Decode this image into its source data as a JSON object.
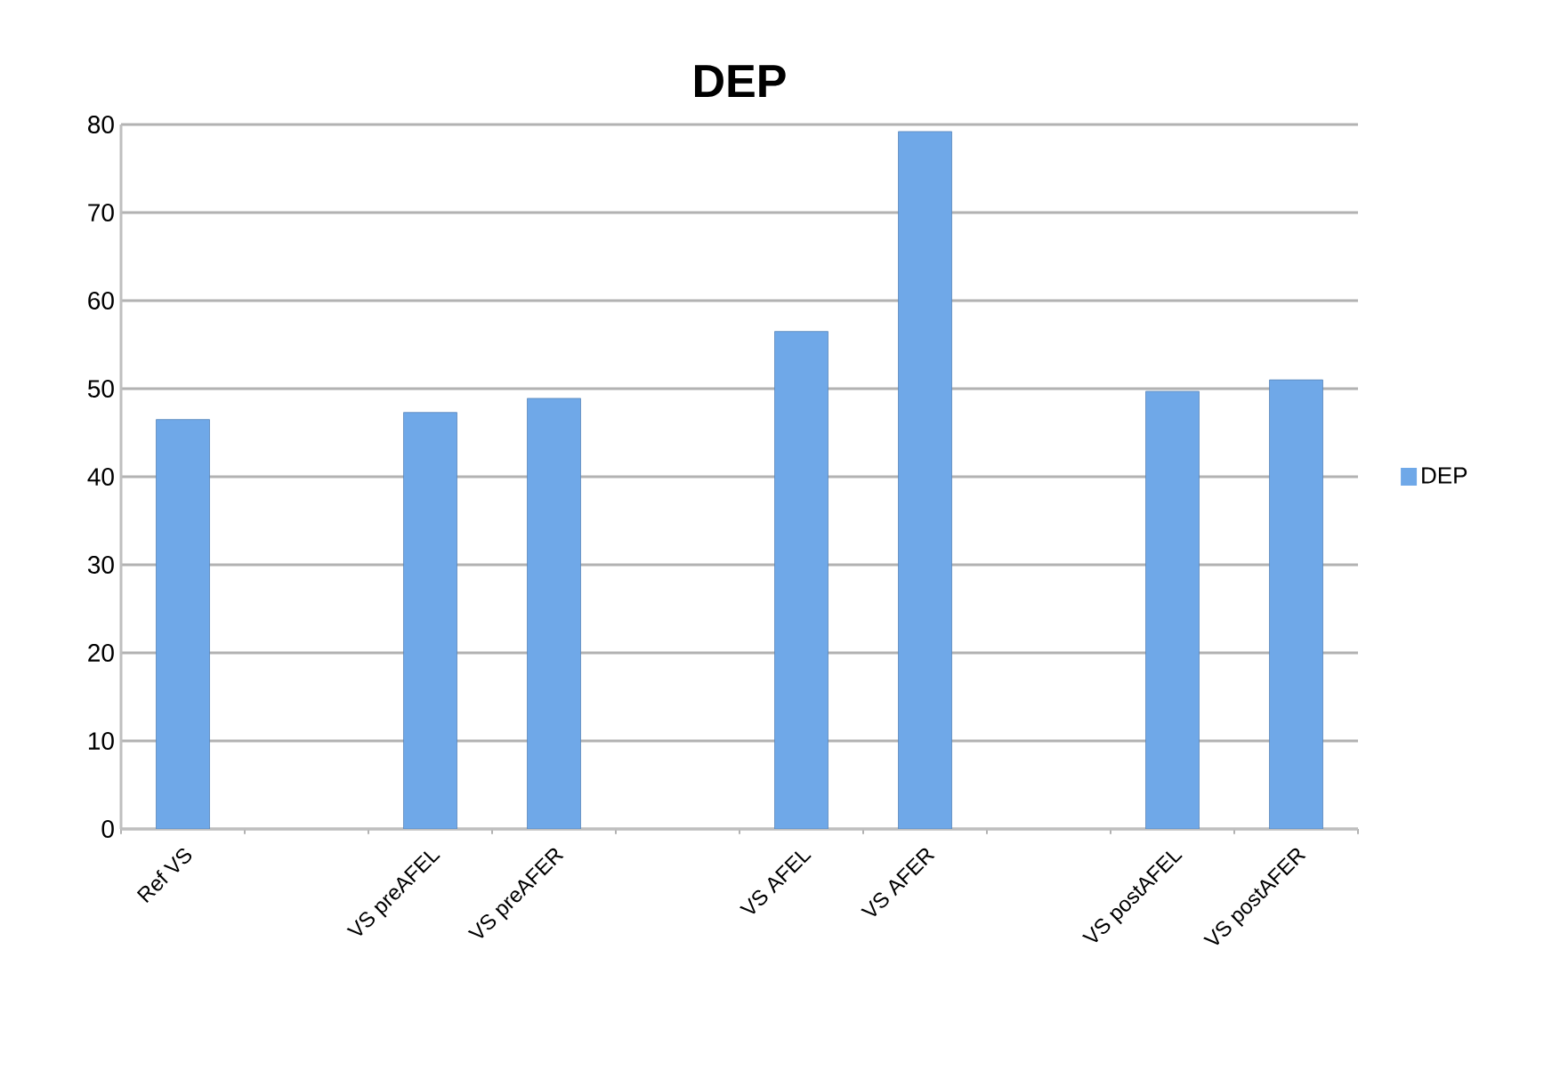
{
  "chart_data": {
    "type": "bar",
    "title": "DEP",
    "categories": [
      "Ref VS",
      null,
      "VS preAFEL",
      "VS preAFER",
      null,
      "VS AFEL",
      "VS AFER",
      null,
      "VS postAFEL",
      "VS postAFER"
    ],
    "series": [
      {
        "name": "DEP",
        "color": "#6fa8e8",
        "values": [
          46.5,
          null,
          47.3,
          48.9,
          null,
          56.5,
          79.2,
          null,
          49.7,
          51
        ]
      }
    ],
    "ylim": [
      0,
      80
    ],
    "yticks": [
      0,
      10,
      20,
      30,
      40,
      50,
      60,
      70,
      80
    ],
    "grid": "y",
    "legend": "right"
  }
}
